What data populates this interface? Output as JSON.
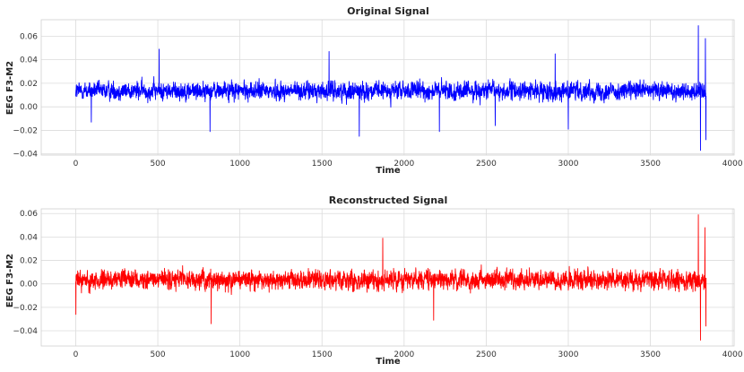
{
  "chart_data": [
    {
      "type": "line",
      "title": "Original Signal",
      "xlabel": "Time",
      "ylabel": "EEG F3-M2",
      "xlim": [
        -210,
        4010
      ],
      "ylim": [
        -0.041,
        0.074
      ],
      "xticks": [
        0,
        500,
        1000,
        1500,
        2000,
        2500,
        3000,
        3500,
        4000
      ],
      "yticks": [
        -0.04,
        -0.02,
        0.0,
        0.02,
        0.04,
        0.06
      ],
      "xtick_labels": [
        "0",
        "500",
        "1000",
        "1500",
        "2000",
        "2500",
        "3000",
        "3500",
        "4000"
      ],
      "ytick_labels": [
        "−0.04",
        "−0.02",
        "0.00",
        "0.02",
        "0.04",
        "0.06"
      ],
      "grid": true,
      "color": "#0000ff",
      "series": [
        {
          "n_samples": 3840,
          "x_range": [
            0,
            3839
          ],
          "baseline": 0.013,
          "typical_range": [
            -0.012,
            0.045
          ],
          "notable_points": [
            {
              "x": 95,
              "y": -0.013
            },
            {
              "x": 508,
              "y": 0.049
            },
            {
              "x": 818,
              "y": -0.021
            },
            {
              "x": 1543,
              "y": 0.047
            },
            {
              "x": 1727,
              "y": -0.025
            },
            {
              "x": 2215,
              "y": -0.021
            },
            {
              "x": 2555,
              "y": -0.016
            },
            {
              "x": 2920,
              "y": 0.045
            },
            {
              "x": 3000,
              "y": -0.019
            },
            {
              "x": 3792,
              "y": 0.069
            },
            {
              "x": 3805,
              "y": -0.037
            },
            {
              "x": 3835,
              "y": 0.058
            },
            {
              "x": 3838,
              "y": -0.028
            }
          ]
        }
      ]
    },
    {
      "type": "line",
      "title": "Reconstructed Signal",
      "xlabel": "Time",
      "ylabel": "EEG F3-M2",
      "xlim": [
        -210,
        4010
      ],
      "ylim": [
        -0.053,
        0.064
      ],
      "xticks": [
        0,
        500,
        1000,
        1500,
        2000,
        2500,
        3000,
        3500,
        4000
      ],
      "yticks": [
        -0.04,
        -0.02,
        0.0,
        0.02,
        0.04,
        0.06
      ],
      "xtick_labels": [
        "0",
        "500",
        "1000",
        "1500",
        "2000",
        "2500",
        "3000",
        "3500",
        "4000"
      ],
      "ytick_labels": [
        "−0.04",
        "−0.02",
        "0.00",
        "0.02",
        "0.04",
        "0.06"
      ],
      "grid": true,
      "color": "#ff0000",
      "series": [
        {
          "n_samples": 3840,
          "x_range": [
            0,
            3839
          ],
          "baseline": 0.003,
          "typical_range": [
            -0.025,
            0.035
          ],
          "notable_points": [
            {
              "x": 1,
              "y": -0.026
            },
            {
              "x": 825,
              "y": -0.034
            },
            {
              "x": 1870,
              "y": 0.039
            },
            {
              "x": 2180,
              "y": -0.031
            },
            {
              "x": 3792,
              "y": 0.059
            },
            {
              "x": 3805,
              "y": -0.048
            },
            {
              "x": 3832,
              "y": 0.048
            },
            {
              "x": 3838,
              "y": -0.036
            }
          ]
        }
      ]
    }
  ]
}
